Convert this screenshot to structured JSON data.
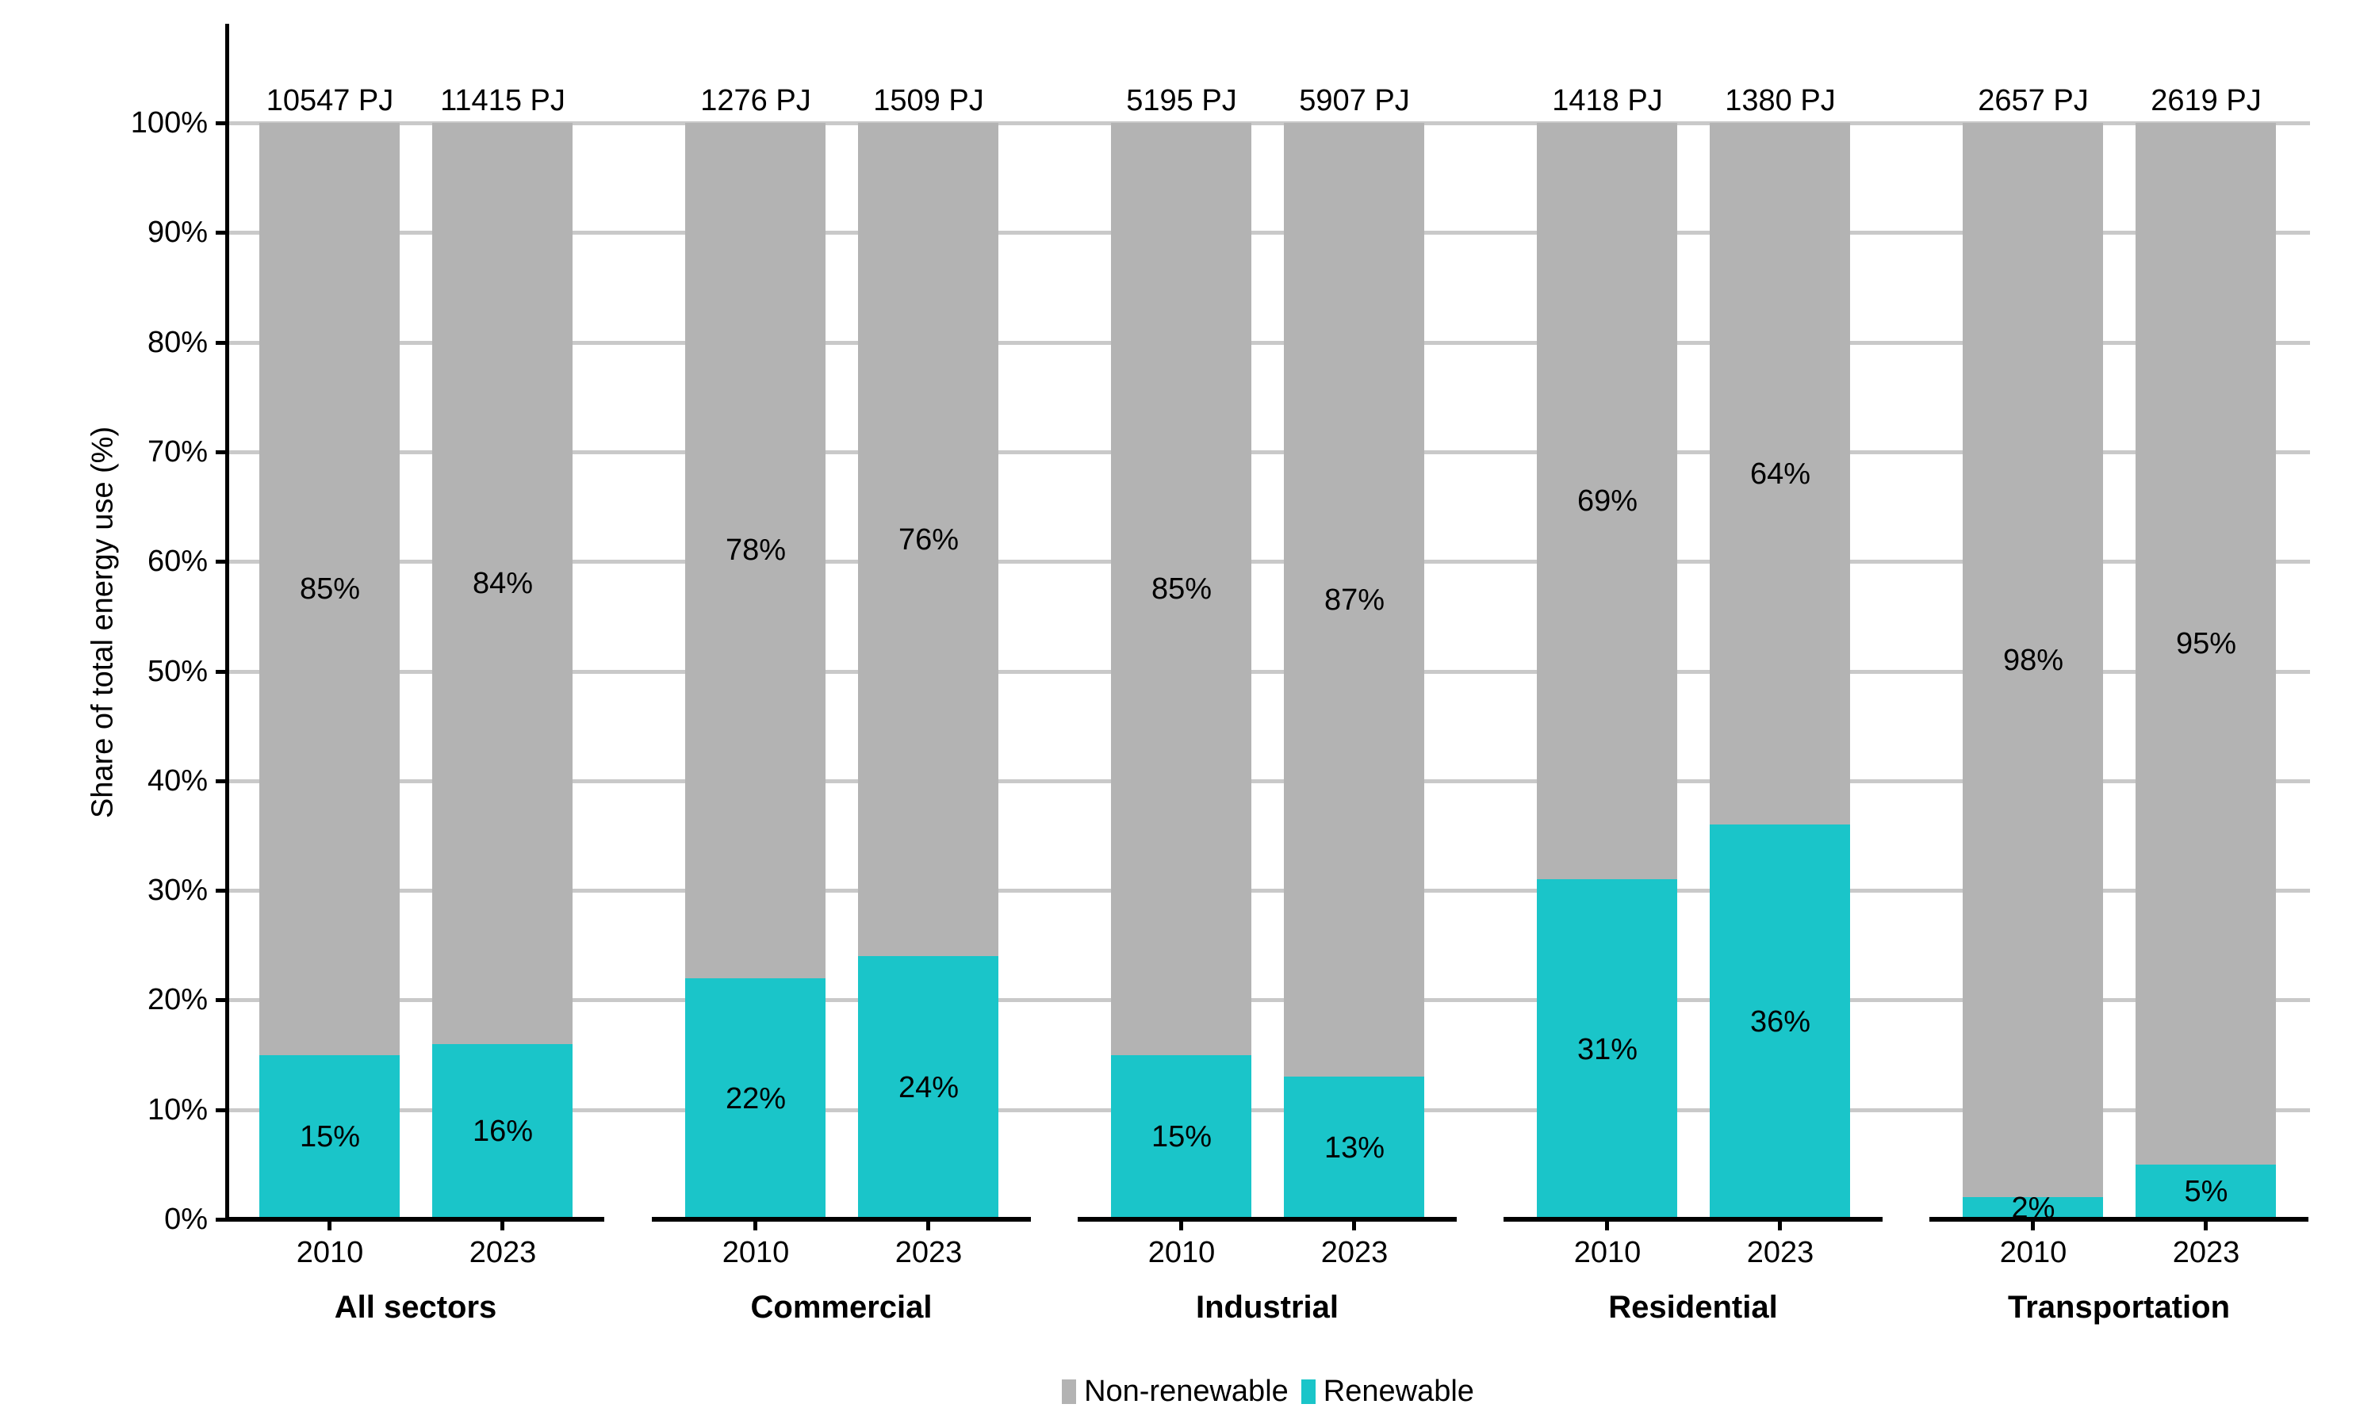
{
  "colors": {
    "renewable": "#1ac5c9",
    "nonrenewable": "#b3b3b3",
    "gridline": "#c9c9c9",
    "axis": "#000000",
    "background": "#ffffff"
  },
  "chart_data": {
    "type": "bar",
    "stacked": true,
    "orientation": "vertical",
    "title": "",
    "ylabel": "Share of total energy use (%)",
    "xlabel": "",
    "ylim": [
      0,
      100
    ],
    "ytick_step": 10,
    "yticks": [
      "0%",
      "10%",
      "20%",
      "30%",
      "40%",
      "50%",
      "60%",
      "70%",
      "80%",
      "90%",
      "100%"
    ],
    "grid": "horizontal",
    "legend": [
      "Non-renewable",
      "Renewable"
    ],
    "legend_position": "bottom",
    "years": [
      "2010",
      "2023"
    ],
    "categories": [
      "All sectors",
      "Commercial",
      "Industrial",
      "Residential",
      "Transportation"
    ],
    "value_unit": "percent of total energy use; bar totals in PJ",
    "panels": [
      {
        "sector": "All sectors",
        "bars": [
          {
            "year": "2010",
            "total_label": "10547 PJ",
            "renewable_pct": 15,
            "nonrenewable_pct": 85,
            "renewable_label": "15%",
            "nonrenewable_label": "85%"
          },
          {
            "year": "2023",
            "total_label": "11415 PJ",
            "renewable_pct": 16,
            "nonrenewable_pct": 84,
            "renewable_label": "16%",
            "nonrenewable_label": "84%"
          }
        ]
      },
      {
        "sector": "Commercial",
        "bars": [
          {
            "year": "2010",
            "total_label": "1276 PJ",
            "renewable_pct": 22,
            "nonrenewable_pct": 78,
            "renewable_label": "22%",
            "nonrenewable_label": "78%"
          },
          {
            "year": "2023",
            "total_label": "1509 PJ",
            "renewable_pct": 24,
            "nonrenewable_pct": 76,
            "renewable_label": "24%",
            "nonrenewable_label": "76%"
          }
        ]
      },
      {
        "sector": "Industrial",
        "bars": [
          {
            "year": "2010",
            "total_label": "5195 PJ",
            "renewable_pct": 15,
            "nonrenewable_pct": 85,
            "renewable_label": "15%",
            "nonrenewable_label": "85%"
          },
          {
            "year": "2023",
            "total_label": "5907 PJ",
            "renewable_pct": 13,
            "nonrenewable_pct": 87,
            "renewable_label": "13%",
            "nonrenewable_label": "87%"
          }
        ]
      },
      {
        "sector": "Residential",
        "bars": [
          {
            "year": "2010",
            "total_label": "1418 PJ",
            "renewable_pct": 31,
            "nonrenewable_pct": 69,
            "renewable_label": "31%",
            "nonrenewable_label": "69%"
          },
          {
            "year": "2023",
            "total_label": "1380 PJ",
            "renewable_pct": 36,
            "nonrenewable_pct": 64,
            "renewable_label": "36%",
            "nonrenewable_label": "64%"
          }
        ]
      },
      {
        "sector": "Transportation",
        "bars": [
          {
            "year": "2010",
            "total_label": "2657 PJ",
            "renewable_pct": 2,
            "nonrenewable_pct": 98,
            "renewable_label": "2%",
            "nonrenewable_label": "98%"
          },
          {
            "year": "2023",
            "total_label": "2619 PJ",
            "renewable_pct": 5,
            "nonrenewable_pct": 95,
            "renewable_label": "5%",
            "nonrenewable_label": "95%"
          }
        ]
      }
    ]
  }
}
